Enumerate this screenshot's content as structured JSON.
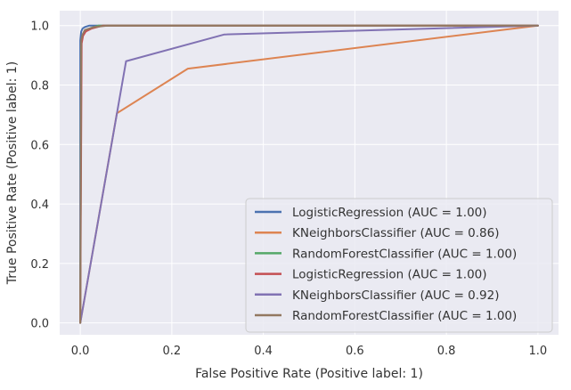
{
  "chart_data": {
    "type": "line",
    "title": "",
    "xlabel": "False Positive Rate (Positive label: 1)",
    "ylabel": "True Positive Rate (Positive label: 1)",
    "xlim": [
      -0.045,
      1.045
    ],
    "ylim": [
      -0.04,
      1.05
    ],
    "xticks": [
      0.0,
      0.2,
      0.4,
      0.6,
      0.8,
      1.0
    ],
    "yticks": [
      0.0,
      0.2,
      0.4,
      0.6,
      0.8,
      1.0
    ],
    "xtick_labels": [
      "0.0",
      "0.2",
      "0.4",
      "0.6",
      "0.8",
      "1.0"
    ],
    "ytick_labels": [
      "0.0",
      "0.2",
      "0.4",
      "0.6",
      "0.8",
      "1.0"
    ],
    "grid": true,
    "background": "#eaeaf2",
    "legend_position": "lower-right",
    "series": [
      {
        "name": "LogisticRegression (AUC = 1.00)",
        "color": "#4c72b0",
        "x": [
          0,
          0.0,
          0.002,
          0.005,
          0.01,
          0.02,
          1.0
        ],
        "y": [
          0,
          0.95,
          0.98,
          0.99,
          0.995,
          1.0,
          1.0
        ]
      },
      {
        "name": "KNeighborsClassifier (AUC = 0.86)",
        "color": "#dd8452",
        "x": [
          0,
          0.08,
          0.235,
          1.0
        ],
        "y": [
          0,
          0.705,
          0.855,
          1.0
        ]
      },
      {
        "name": "RandomForestClassifier (AUC = 1.00)",
        "color": "#55a868",
        "x": [
          0,
          0.002,
          0.004,
          0.01,
          0.02,
          0.04,
          1.0
        ],
        "y": [
          0,
          0.93,
          0.96,
          0.98,
          0.99,
          1.0,
          1.0
        ]
      },
      {
        "name": "LogisticRegression (AUC = 1.00)",
        "color": "#c44e52",
        "x": [
          0,
          0.003,
          0.006,
          0.012,
          0.025,
          0.05,
          1.0
        ],
        "y": [
          0,
          0.94,
          0.965,
          0.98,
          0.99,
          1.0,
          1.0
        ]
      },
      {
        "name": "KNeighborsClassifier (AUC = 0.92)",
        "color": "#8172b3",
        "x": [
          0,
          0.1,
          0.315,
          1.0
        ],
        "y": [
          0,
          0.88,
          0.97,
          1.0
        ]
      },
      {
        "name": "RandomForestClassifier (AUC = 1.00)",
        "color": "#937860",
        "x": [
          0,
          0.002,
          0.005,
          0.01,
          0.03,
          0.06,
          1.0
        ],
        "y": [
          0,
          0.95,
          0.97,
          0.985,
          0.995,
          1.0,
          1.0
        ]
      }
    ]
  }
}
